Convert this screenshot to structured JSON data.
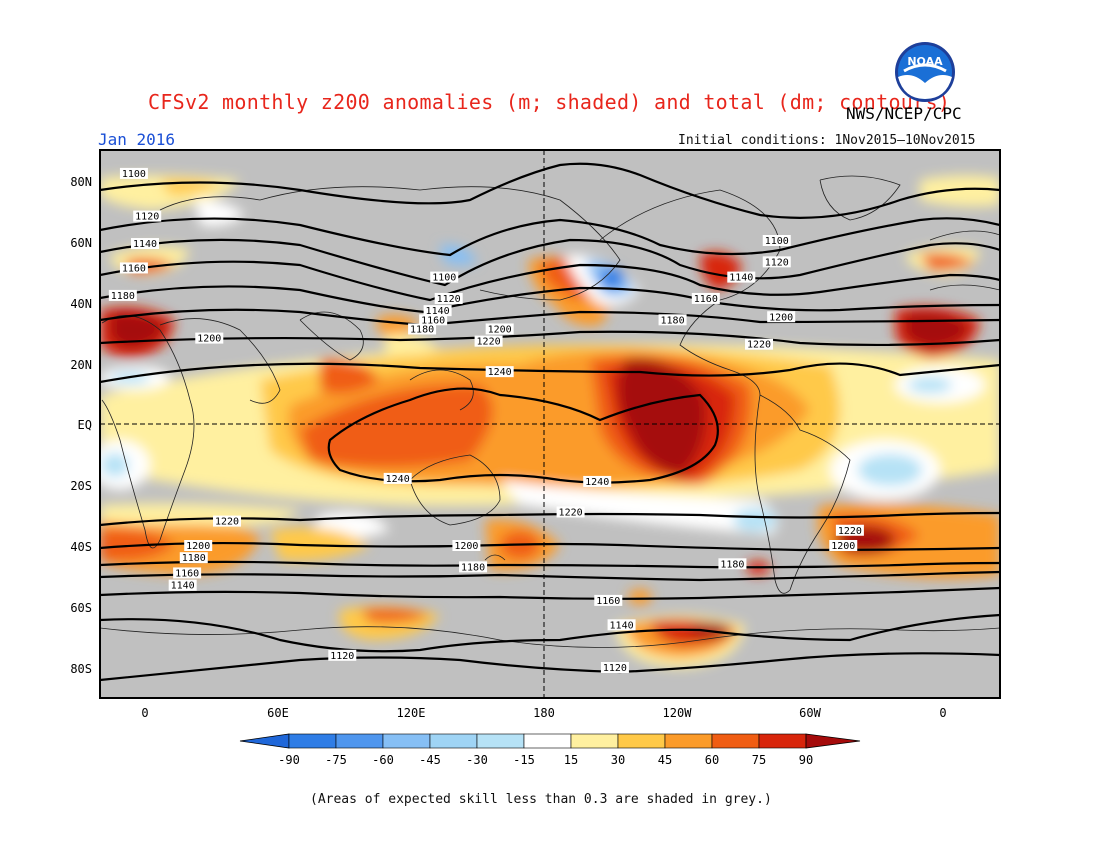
{
  "header": {
    "title": "CFSv2 monthly z200 anomalies (m; shaded) and total (dm; contours)",
    "agency": "NWS/NCEP/CPC",
    "valid_month": "Jan 2016",
    "initial_conditions": "Initial conditions: 1Nov2015–10Nov2015",
    "logo_text": "NOAA"
  },
  "footer": {
    "note": "(Areas of expected skill less than 0.3 are shaded in grey.)"
  },
  "map": {
    "lat_labels": [
      "80N",
      "60N",
      "40N",
      "20N",
      "EQ",
      "20S",
      "40S",
      "60S",
      "80S"
    ],
    "lon_labels": [
      "0",
      "60E",
      "120E",
      "180",
      "120W",
      "60W",
      "0"
    ],
    "colors": {
      "skill_grey": "#c0c0c0",
      "neg_90": "#1f67d9",
      "neg_75": "#2f7de6",
      "neg_60": "#4f96ee",
      "neg_45": "#86bff5",
      "neg_30": "#b6e2f6",
      "neg_15": "#ffffff",
      "pos_15": "#fff0a0",
      "pos_30": "#ffc948",
      "pos_45": "#fb9b2a",
      "pos_60": "#f05d13",
      "pos_75": "#d8250b",
      "pos_90": "#a50b0b"
    },
    "contour_labels": [
      {
        "text": "1100",
        "lon": -5,
        "lat": 82
      },
      {
        "text": "1120",
        "lon": 1,
        "lat": 68
      },
      {
        "text": "1140",
        "lon": 0,
        "lat": 59
      },
      {
        "text": "1160",
        "lon": -5,
        "lat": 51
      },
      {
        "text": "1180",
        "lon": -10,
        "lat": 42
      },
      {
        "text": "1200",
        "lon": 29,
        "lat": 28
      },
      {
        "text": "1100",
        "lon": 135,
        "lat": 48
      },
      {
        "text": "1120",
        "lon": 137,
        "lat": 41
      },
      {
        "text": "1140",
        "lon": 132,
        "lat": 37
      },
      {
        "text": "1160",
        "lon": 130,
        "lat": 34
      },
      {
        "text": "1180",
        "lon": 125,
        "lat": 31
      },
      {
        "text": "1200",
        "lon": 160,
        "lat": 31
      },
      {
        "text": "1220",
        "lon": 155,
        "lat": 27
      },
      {
        "text": "1240",
        "lon": 160,
        "lat": 17
      },
      {
        "text": "1100",
        "lon": -75,
        "lat": 60
      },
      {
        "text": "1120",
        "lon": -75,
        "lat": 53
      },
      {
        "text": "1140",
        "lon": -91,
        "lat": 48
      },
      {
        "text": "1160",
        "lon": -107,
        "lat": 41
      },
      {
        "text": "1180",
        "lon": -122,
        "lat": 34
      },
      {
        "text": "1200",
        "lon": -73,
        "lat": 35
      },
      {
        "text": "1220",
        "lon": -83,
        "lat": 26
      },
      {
        "text": "1240",
        "lon": 114,
        "lat": -18
      },
      {
        "text": "1240",
        "lon": -156,
        "lat": -19
      },
      {
        "text": "1220",
        "lon": 37,
        "lat": -32
      },
      {
        "text": "1220",
        "lon": -168,
        "lat": -29
      },
      {
        "text": "1200",
        "lon": 24,
        "lat": -40
      },
      {
        "text": "1180",
        "lon": 22,
        "lat": -44
      },
      {
        "text": "1160",
        "lon": 19,
        "lat": -49
      },
      {
        "text": "1140",
        "lon": 17,
        "lat": -53
      },
      {
        "text": "1200",
        "lon": 145,
        "lat": -40
      },
      {
        "text": "1180",
        "lon": 148,
        "lat": -47
      },
      {
        "text": "1220",
        "lon": -42,
        "lat": -35
      },
      {
        "text": "1200",
        "lon": -45,
        "lat": -40
      },
      {
        "text": "1180",
        "lon": -95,
        "lat": -46
      },
      {
        "text": "1160",
        "lon": -151,
        "lat": -58
      },
      {
        "text": "1140",
        "lon": -145,
        "lat": -66
      },
      {
        "text": "1120",
        "lon": 89,
        "lat": -76
      },
      {
        "text": "1120",
        "lon": -148,
        "lat": -80
      }
    ]
  },
  "legend": {
    "ticks": [
      "-90",
      "-75",
      "-60",
      "-45",
      "-30",
      "-15",
      "15",
      "30",
      "45",
      "60",
      "75",
      "90"
    ]
  }
}
